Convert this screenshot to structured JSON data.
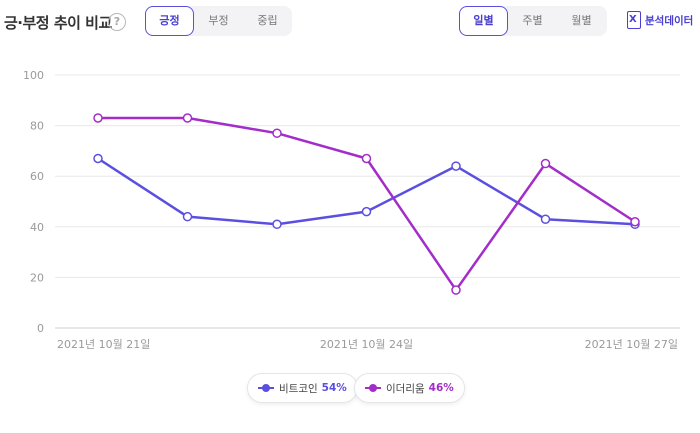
{
  "header": {
    "title": "긍·부정 추이 비교",
    "help_icon": "?",
    "sentiment_tabs": [
      "긍정",
      "부정",
      "중립"
    ],
    "active_sentiment": 0,
    "period_tabs": [
      "일별",
      "주별",
      "월별"
    ],
    "active_period": 0,
    "export_label": "분석데이터",
    "export_icon_glyph": "X",
    "accent_color": "#4a3fd0"
  },
  "chart_data": {
    "type": "line",
    "title": "",
    "xlabel": "",
    "ylabel": "",
    "ylim": [
      0,
      100
    ],
    "yticks": [
      0,
      20,
      40,
      60,
      80,
      100
    ],
    "x": [
      "2021-10-21",
      "2021-10-22",
      "2021-10-23",
      "2021-10-24",
      "2021-10-25",
      "2021-10-26",
      "2021-10-27"
    ],
    "x_tick_labels": [
      "2021년 10월 21일",
      "2021년 10월 24일",
      "2021년 10월 27일"
    ],
    "x_tick_indices": [
      0,
      3,
      6
    ],
    "grid": true,
    "legend_position": "bottom-center",
    "series": [
      {
        "name": "비트코인",
        "share": "54%",
        "color": "#5b4fe0",
        "values": [
          67,
          44,
          41,
          46,
          64,
          43,
          41
        ]
      },
      {
        "name": "이더리움",
        "share": "46%",
        "color": "#a32dc8",
        "values": [
          83,
          83,
          77,
          67,
          15,
          65,
          42
        ]
      }
    ]
  }
}
